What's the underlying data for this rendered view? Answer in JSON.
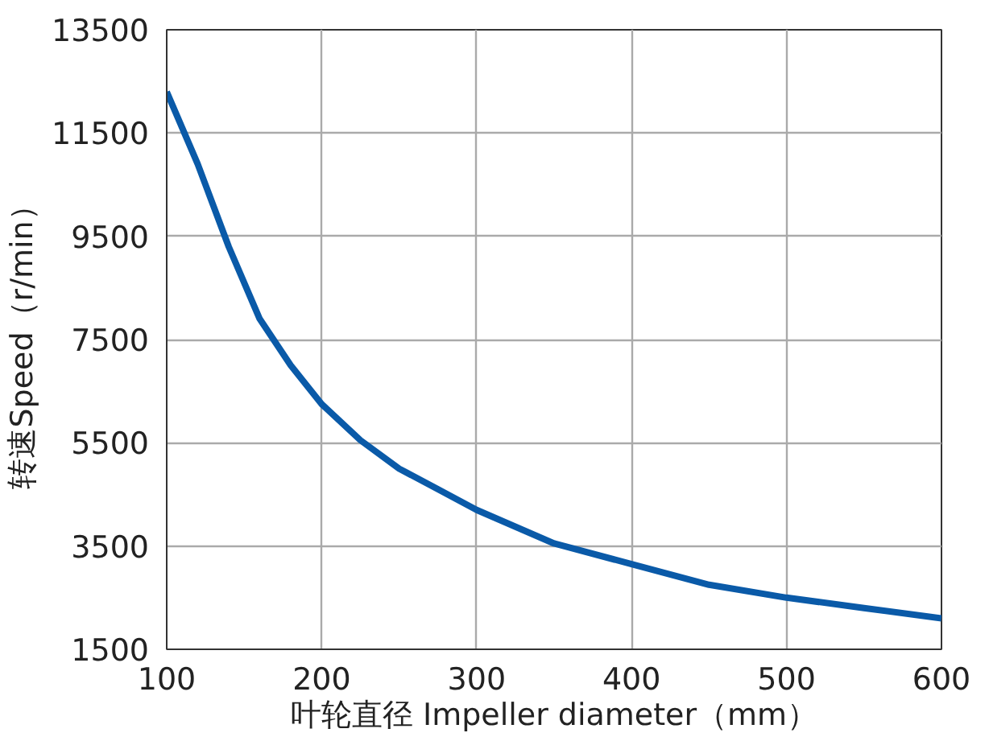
{
  "chart_data": {
    "type": "line",
    "xlabel": "叶轮直径 Impeller diameter（mm）",
    "ylabel": "转速Speed（r/min）",
    "xlim": [
      100,
      600
    ],
    "xticks": [
      100,
      200,
      300,
      400,
      500,
      600
    ],
    "ylim": [
      1500,
      13500
    ],
    "yticks": [
      1500,
      3500,
      5500,
      7500,
      9500,
      11500,
      13500
    ],
    "grid": true,
    "marker": "none",
    "line_style": "solid",
    "series": [
      {
        "color": "#0a5aa8",
        "x": [
          100,
          120,
          140,
          160,
          180,
          200,
          225,
          250,
          275,
          300,
          350,
          400,
          450,
          500,
          550,
          600
        ],
        "values": [
          12300,
          10900,
          9300,
          7900,
          7000,
          6250,
          5550,
          5000,
          4600,
          4200,
          3550,
          3150,
          2750,
          2500,
          2300,
          2100
        ]
      }
    ]
  }
}
